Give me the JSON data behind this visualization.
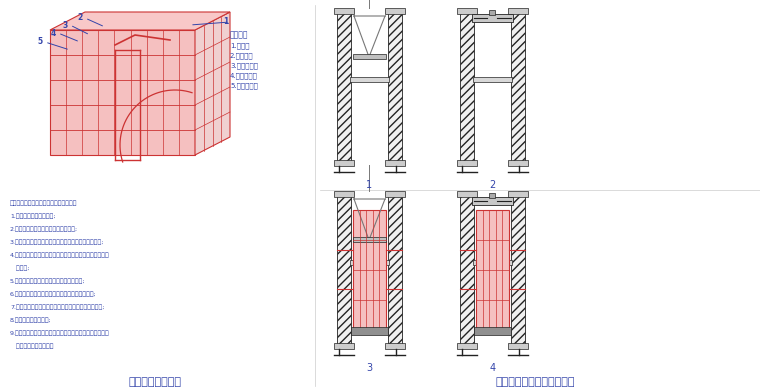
{
  "title_left": "电梯井筒模示意图",
  "title_right": "电梯井移动操作平台示意图",
  "bg_color": "#ffffff",
  "red_color": "#cc3333",
  "pink_fill": "#f5c0c0",
  "pink_fill2": "#f0d0d0",
  "blue_color": "#3344aa",
  "dark_color": "#222222",
  "gray_color": "#777777",
  "mid_gray": "#aaaaaa",
  "light_gray": "#dddddd",
  "legend_title": "图示说明",
  "legend_items": [
    "1.面板层",
    "2.三角钢组",
    "3.方钢主龙骨",
    "4.方钢次龙骨",
    "5.槽木组合模"
  ],
  "step_lines": [
    "电梯井操作平台及筒模配套使用工艺步骤",
    "1.规划出装置模支放开位;",
    "2.安装筒模四角，剧拔模板，准备吊运;",
    "3.通过预埋孔局导线过提升操作平台，调好高度及水平;",
    "4.绑扎钢筋面筋，支模板，加入型钢螺杆，预留预留孔，导",
    "   入滑模;",
    "5.先开属模打台，上浮部给螺杆，规范混检;",
    "6.绑扎螺杆，收紧螺螺打角，使跑筒模两面贴墙体;",
    "7.均衡浇灌高矿，连续调模，剧拔模板，准备开次步骤;",
    "8.起步电梯井操作平台;",
    "9.电梯井操作平台支脚打动移入预留孔，调好平台高度及水",
    "   平，进入下一段施工。"
  ]
}
